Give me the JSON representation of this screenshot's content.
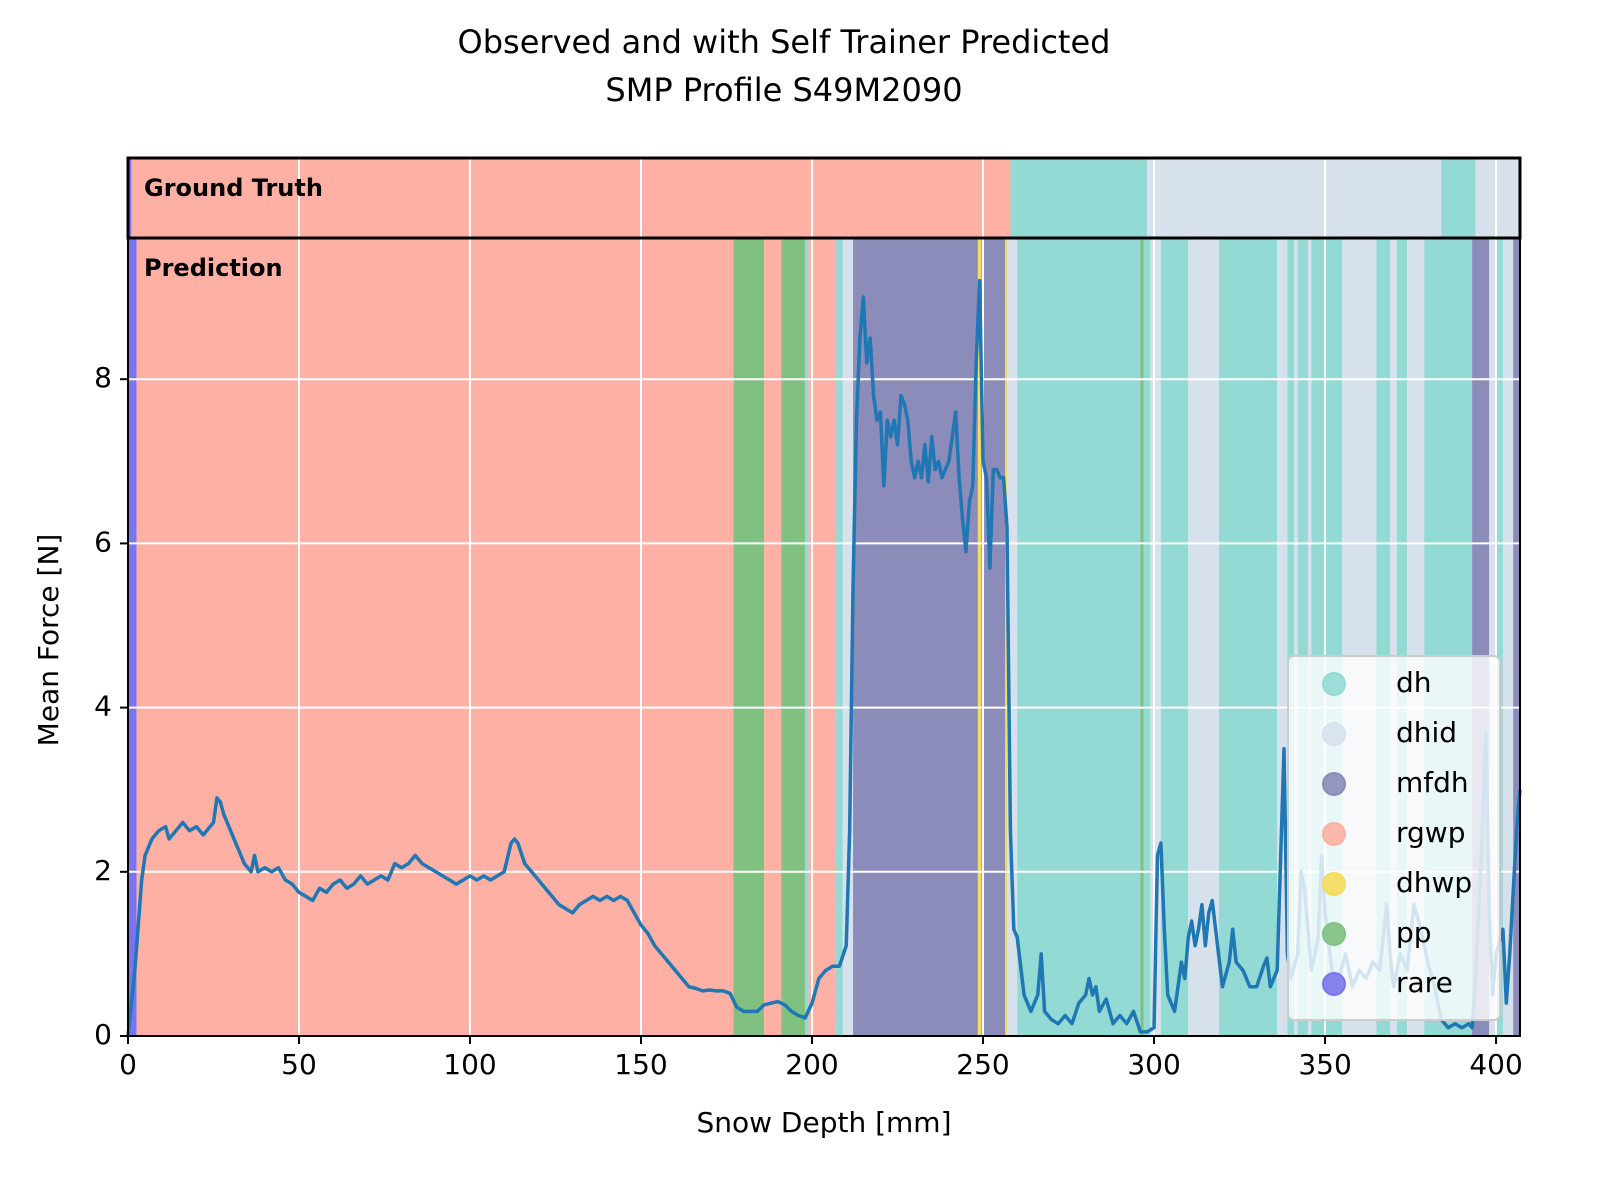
{
  "chart_data": {
    "type": "profile",
    "title": [
      "Observed and with Self Trainer Predicted",
      "SMP Profile S49M2090"
    ],
    "x_label": "Snow Depth [mm]",
    "y_label": "Mean Force [N]",
    "xlim": [
      0,
      407
    ],
    "ylim": [
      0,
      9.72
    ],
    "xticks": [
      0,
      50,
      100,
      150,
      200,
      250,
      300,
      350,
      400
    ],
    "yticks": [
      0,
      2,
      4,
      6,
      8
    ],
    "grid": true,
    "legend_loc": "lower right",
    "line_color": "#1f77b4",
    "classes": [
      {
        "name": "dh",
        "color": "#93d9d4"
      },
      {
        "name": "dhid",
        "color": "#d7e1ec"
      },
      {
        "name": "mfdh",
        "color": "#8b8cb9"
      },
      {
        "name": "rgwp",
        "color": "#fdb0a3"
      },
      {
        "name": "dhwp",
        "color": "#f5dc5a"
      },
      {
        "name": "pp",
        "color": "#80c080"
      },
      {
        "name": "rare",
        "color": "#7b74ec"
      }
    ],
    "ground_truth": {
      "label": "Ground Truth",
      "starts": [
        0,
        1,
        258,
        298,
        384,
        394
      ],
      "ends": [
        1,
        258,
        298,
        384,
        394,
        407
      ],
      "classes": [
        "rare",
        "rgwp",
        "dh",
        "dhid",
        "dh",
        "dhid"
      ]
    },
    "prediction": {
      "label": "Prediction",
      "starts": [
        0,
        2.5,
        177,
        186,
        191,
        198,
        199,
        207,
        209,
        212,
        248.5,
        249.5,
        256.5,
        257,
        260,
        296,
        297,
        299,
        302,
        310,
        319,
        336,
        339,
        341,
        342,
        345,
        346,
        355,
        365,
        369,
        371,
        374,
        379,
        393,
        398,
        400,
        402,
        405
      ],
      "ends": [
        2.5,
        177,
        186,
        191,
        198,
        199,
        207,
        209,
        212,
        248.5,
        249.5,
        256.5,
        257,
        260,
        296,
        297,
        299,
        302,
        310,
        319,
        336,
        339,
        341,
        342,
        345,
        346,
        355,
        365,
        369,
        371,
        374,
        379,
        393,
        398,
        400,
        402,
        405,
        407
      ],
      "classes": [
        "rare",
        "rgwp",
        "pp",
        "rgwp",
        "pp",
        "dh",
        "rgwp",
        "dh",
        "dhid",
        "mfdh",
        "dhwp",
        "mfdh",
        "dhwp",
        "dhid",
        "dh",
        "pp",
        "dh",
        "dhid",
        "dh",
        "dhid",
        "dh",
        "dhid",
        "dh",
        "dhid",
        "dh",
        "dhid",
        "dh",
        "dhid",
        "dh",
        "dhid",
        "dh",
        "dhid",
        "dh",
        "mfdh",
        "dhid",
        "dh",
        "dhid",
        "mfdh"
      ]
    },
    "line": {
      "x": [
        0,
        2,
        4,
        5,
        7,
        9,
        11,
        12,
        14,
        16,
        18,
        20,
        22,
        24,
        25,
        26,
        27,
        28,
        30,
        32,
        34,
        36,
        37,
        38,
        40,
        42,
        44,
        46,
        48,
        50,
        52,
        54,
        56,
        58,
        60,
        62,
        64,
        66,
        68,
        70,
        72,
        74,
        76,
        78,
        80,
        82,
        84,
        86,
        88,
        90,
        92,
        94,
        96,
        98,
        100,
        102,
        104,
        106,
        108,
        110,
        112,
        113,
        114,
        116,
        118,
        120,
        122,
        124,
        126,
        128,
        130,
        132,
        134,
        136,
        138,
        140,
        142,
        144,
        146,
        148,
        150,
        152,
        154,
        156,
        158,
        160,
        162,
        164,
        166,
        168,
        170,
        172,
        174,
        176,
        178,
        180,
        182,
        184,
        186,
        188,
        190,
        192,
        194,
        196,
        198,
        200,
        202,
        204,
        206,
        208,
        210,
        211,
        212,
        213,
        214,
        215,
        216,
        217,
        218,
        219,
        220,
        221,
        222,
        223,
        224,
        225,
        226,
        227,
        228,
        229,
        230,
        231,
        232,
        233,
        234,
        235,
        236,
        237,
        238,
        240,
        242,
        243,
        244,
        245,
        246,
        247,
        248,
        249,
        250,
        251,
        252,
        253,
        254,
        255,
        256,
        257,
        258,
        259,
        260,
        262,
        264,
        266,
        267,
        268,
        270,
        272,
        274,
        276,
        278,
        280,
        281,
        282,
        283,
        284,
        286,
        288,
        290,
        292,
        294,
        296,
        298,
        300,
        301,
        302,
        303,
        304,
        306,
        308,
        309,
        310,
        311,
        312,
        313,
        314,
        315,
        316,
        317,
        318,
        320,
        322,
        323,
        324,
        326,
        328,
        330,
        332,
        333,
        334,
        336,
        338,
        339,
        340,
        342,
        343,
        344,
        346,
        348,
        349,
        350,
        352,
        354,
        356,
        358,
        360,
        362,
        364,
        366,
        368,
        369,
        370,
        372,
        374,
        376,
        378,
        380,
        382,
        384,
        386,
        388,
        390,
        392,
        393,
        394,
        396,
        397,
        398,
        399,
        400,
        402,
        403,
        404,
        406,
        407
      ],
      "y": [
        0,
        0.8,
        1.9,
        2.2,
        2.4,
        2.5,
        2.55,
        2.4,
        2.5,
        2.6,
        2.5,
        2.55,
        2.45,
        2.55,
        2.6,
        2.9,
        2.85,
        2.7,
        2.5,
        2.3,
        2.1,
        2.0,
        2.2,
        2.0,
        2.05,
        2.0,
        2.05,
        1.9,
        1.85,
        1.75,
        1.7,
        1.65,
        1.8,
        1.75,
        1.85,
        1.9,
        1.8,
        1.85,
        1.95,
        1.85,
        1.9,
        1.95,
        1.9,
        2.1,
        2.05,
        2.1,
        2.2,
        2.1,
        2.05,
        2.0,
        1.95,
        1.9,
        1.85,
        1.9,
        1.95,
        1.9,
        1.95,
        1.9,
        1.95,
        2.0,
        2.35,
        2.4,
        2.35,
        2.1,
        2.0,
        1.9,
        1.8,
        1.7,
        1.6,
        1.55,
        1.5,
        1.6,
        1.65,
        1.7,
        1.65,
        1.7,
        1.65,
        1.7,
        1.65,
        1.5,
        1.35,
        1.25,
        1.1,
        1.0,
        0.9,
        0.8,
        0.7,
        0.6,
        0.58,
        0.55,
        0.56,
        0.55,
        0.55,
        0.52,
        0.35,
        0.3,
        0.3,
        0.3,
        0.38,
        0.4,
        0.42,
        0.38,
        0.3,
        0.25,
        0.22,
        0.4,
        0.7,
        0.8,
        0.85,
        0.85,
        1.1,
        2.5,
        5.5,
        7.5,
        8.5,
        9.0,
        8.2,
        8.5,
        7.8,
        7.5,
        7.6,
        6.7,
        7.5,
        7.3,
        7.5,
        7.2,
        7.8,
        7.7,
        7.5,
        7.0,
        6.8,
        7.0,
        6.8,
        7.2,
        6.75,
        7.3,
        6.9,
        7.0,
        6.8,
        7.0,
        7.6,
        6.8,
        6.3,
        5.9,
        6.5,
        6.7,
        8.2,
        9.2,
        7.0,
        6.8,
        5.7,
        6.9,
        6.9,
        6.8,
        6.8,
        6.2,
        2.5,
        1.3,
        1.2,
        0.5,
        0.3,
        0.5,
        1.0,
        0.3,
        0.2,
        0.15,
        0.25,
        0.15,
        0.4,
        0.5,
        0.7,
        0.5,
        0.6,
        0.3,
        0.45,
        0.15,
        0.25,
        0.15,
        0.3,
        0.05,
        0.05,
        0.1,
        2.2,
        2.35,
        1.3,
        0.5,
        0.3,
        0.9,
        0.7,
        1.2,
        1.4,
        1.1,
        1.3,
        1.6,
        1.1,
        1.5,
        1.65,
        1.3,
        0.6,
        0.9,
        1.3,
        0.9,
        0.8,
        0.6,
        0.6,
        0.85,
        0.95,
        0.6,
        0.8,
        3.5,
        1.0,
        0.7,
        1.0,
        2.0,
        1.8,
        0.8,
        1.2,
        2.2,
        1.5,
        0.8,
        0.7,
        1.0,
        0.6,
        0.8,
        0.7,
        0.9,
        0.8,
        1.6,
        1.0,
        0.6,
        1.0,
        0.8,
        1.6,
        1.3,
        0.9,
        0.6,
        0.2,
        0.1,
        0.15,
        0.1,
        0.15,
        0.1,
        0.7,
        2.5,
        3.7,
        1.5,
        0.5,
        1.0,
        1.3,
        0.4,
        1.0,
        2.5,
        3.0
      ]
    }
  }
}
